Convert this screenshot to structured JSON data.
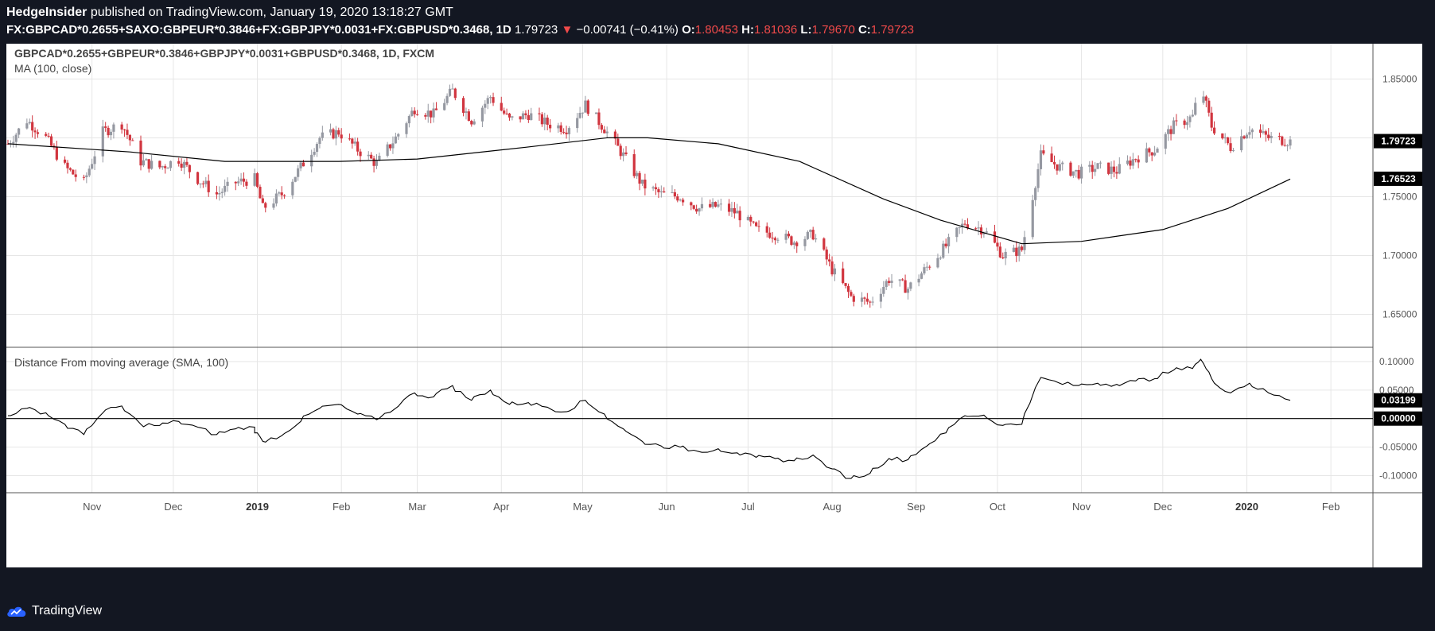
{
  "header": {
    "author": "HedgeInsider",
    "published": "published on TradingView.com, January 19, 2020 13:18:27 GMT",
    "symbol": "FX:GBPCAD*0.2655+SAXO:GBPEUR*0.3846+FX:GBPJPY*0.0031+FX:GBPUSD*0.3468, 1D",
    "last": "1.79723",
    "change_arrow": "▼",
    "change": "−0.00741 (−0.41%)",
    "o_label": "O:",
    "o": "1.80453",
    "h_label": "H:",
    "h": "1.81036",
    "l_label": "L:",
    "l": "1.79670",
    "c_label": "C:",
    "c": "1.79723"
  },
  "footer": {
    "brand": "TradingView"
  },
  "colors": {
    "bg": "#131722",
    "up": "#9598a1",
    "down": "#d1353f",
    "line": "#000000",
    "grid": "#e6e6e6"
  },
  "chart_data": [
    {
      "type": "candlestick",
      "title": "GBPCAD*0.2655+GBPEUR*0.3846+GBPJPY*0.0031+GBPUSD*0.3468, 1D, FXCM",
      "indicator_label": "MA (100, close)",
      "x_labels": [
        "Nov",
        "Dec",
        "2019",
        "Feb",
        "Mar",
        "Apr",
        "May",
        "Jun",
        "Jul",
        "Aug",
        "Sep",
        "Oct",
        "Nov",
        "Dec",
        "2020",
        "Feb"
      ],
      "y_ticks": [
        "1.85000",
        "1.80000",
        "1.75000",
        "1.70000",
        "1.65000"
      ],
      "ylim": [
        1.622,
        1.88
      ],
      "close_path": [
        [
          "2018-10-01",
          1.795
        ],
        [
          "2018-10-08",
          1.815
        ],
        [
          "2018-10-15",
          1.8
        ],
        [
          "2018-10-22",
          1.775
        ],
        [
          "2018-10-29",
          1.762
        ],
        [
          "2018-11-05",
          1.805
        ],
        [
          "2018-11-12",
          1.812
        ],
        [
          "2018-11-19",
          1.78
        ],
        [
          "2018-11-26",
          1.775
        ],
        [
          "2018-12-03",
          1.782
        ],
        [
          "2018-12-10",
          1.765
        ],
        [
          "2018-12-17",
          1.752
        ],
        [
          "2018-12-24",
          1.762
        ],
        [
          "2018-12-31",
          1.765
        ],
        [
          "2019-01-03",
          1.74
        ],
        [
          "2019-01-10",
          1.752
        ],
        [
          "2019-01-17",
          1.775
        ],
        [
          "2019-01-24",
          1.8
        ],
        [
          "2019-01-31",
          1.805
        ],
        [
          "2019-02-07",
          1.79
        ],
        [
          "2019-02-14",
          1.778
        ],
        [
          "2019-02-21",
          1.8
        ],
        [
          "2019-02-28",
          1.825
        ],
        [
          "2019-03-07",
          1.82
        ],
        [
          "2019-03-14",
          1.84
        ],
        [
          "2019-03-21",
          1.815
        ],
        [
          "2019-03-28",
          1.835
        ],
        [
          "2019-04-04",
          1.815
        ],
        [
          "2019-04-11",
          1.82
        ],
        [
          "2019-04-18",
          1.812
        ],
        [
          "2019-04-25",
          1.808
        ],
        [
          "2019-05-02",
          1.828
        ],
        [
          "2019-05-09",
          1.808
        ],
        [
          "2019-05-16",
          1.785
        ],
        [
          "2019-05-23",
          1.76
        ],
        [
          "2019-05-30",
          1.752
        ],
        [
          "2019-06-06",
          1.75
        ],
        [
          "2019-06-13",
          1.74
        ],
        [
          "2019-06-20",
          1.742
        ],
        [
          "2019-06-27",
          1.736
        ],
        [
          "2019-07-04",
          1.722
        ],
        [
          "2019-07-11",
          1.718
        ],
        [
          "2019-07-18",
          1.712
        ],
        [
          "2019-07-25",
          1.718
        ],
        [
          "2019-08-01",
          1.688
        ],
        [
          "2019-08-08",
          1.665
        ],
        [
          "2019-08-15",
          1.66
        ],
        [
          "2019-08-22",
          1.68
        ],
        [
          "2019-08-29",
          1.672
        ],
        [
          "2019-09-05",
          1.69
        ],
        [
          "2019-09-12",
          1.708
        ],
        [
          "2019-09-19",
          1.728
        ],
        [
          "2019-09-26",
          1.722
        ],
        [
          "2019-10-03",
          1.7
        ],
        [
          "2019-10-10",
          1.705
        ],
        [
          "2019-10-17",
          1.785
        ],
        [
          "2019-10-24",
          1.775
        ],
        [
          "2019-10-31",
          1.77
        ],
        [
          "2019-11-07",
          1.775
        ],
        [
          "2019-11-14",
          1.772
        ],
        [
          "2019-11-21",
          1.783
        ],
        [
          "2019-11-28",
          1.79
        ],
        [
          "2019-12-05",
          1.81
        ],
        [
          "2019-12-12",
          1.818
        ],
        [
          "2019-12-15",
          1.845
        ],
        [
          "2019-12-19",
          1.81
        ],
        [
          "2019-12-26",
          1.792
        ],
        [
          "2020-01-02",
          1.808
        ],
        [
          "2020-01-09",
          1.8
        ],
        [
          "2020-01-17",
          1.797
        ]
      ],
      "ma_path": [
        [
          "2018-10-01",
          1.795
        ],
        [
          "2018-11-15",
          1.788
        ],
        [
          "2018-12-20",
          1.78
        ],
        [
          "2019-01-31",
          1.78
        ],
        [
          "2019-03-01",
          1.782
        ],
        [
          "2019-04-10",
          1.792
        ],
        [
          "2019-05-10",
          1.8
        ],
        [
          "2019-05-25",
          1.8
        ],
        [
          "2019-06-20",
          1.795
        ],
        [
          "2019-07-20",
          1.78
        ],
        [
          "2019-08-20",
          1.748
        ],
        [
          "2019-09-10",
          1.73
        ],
        [
          "2019-10-01",
          1.716
        ],
        [
          "2019-10-10",
          1.71
        ],
        [
          "2019-11-01",
          1.712
        ],
        [
          "2019-12-01",
          1.722
        ],
        [
          "2019-12-25",
          1.74
        ],
        [
          "2020-01-17",
          1.765
        ]
      ],
      "price_labels": [
        "1.79723",
        "1.76523"
      ],
      "last_close": 1.79723,
      "ma_last": 1.76523
    },
    {
      "type": "line",
      "title": "Distance From moving average (SMA, 100)",
      "y_ticks": [
        "0.10000",
        "0.05000",
        "0.00000",
        "-0.05000",
        "-0.10000"
      ],
      "ylim": [
        -0.13,
        0.125
      ],
      "zero_label": "0.00000",
      "last_label": "0.03199",
      "last_value": 0.03199,
      "series": [
        [
          "2018-10-01",
          0.005
        ],
        [
          "2018-10-08",
          0.018
        ],
        [
          "2018-10-15",
          0.01
        ],
        [
          "2018-10-22",
          -0.01
        ],
        [
          "2018-10-29",
          -0.028
        ],
        [
          "2018-11-05",
          0.01
        ],
        [
          "2018-11-12",
          0.022
        ],
        [
          "2018-11-19",
          -0.01
        ],
        [
          "2018-11-26",
          -0.012
        ],
        [
          "2018-12-03",
          -0.005
        ],
        [
          "2018-12-10",
          -0.015
        ],
        [
          "2018-12-17",
          -0.028
        ],
        [
          "2018-12-24",
          -0.018
        ],
        [
          "2018-12-31",
          -0.015
        ],
        [
          "2019-01-03",
          -0.04
        ],
        [
          "2019-01-10",
          -0.03
        ],
        [
          "2019-01-17",
          -0.005
        ],
        [
          "2019-01-24",
          0.018
        ],
        [
          "2019-01-31",
          0.025
        ],
        [
          "2019-02-07",
          0.008
        ],
        [
          "2019-02-14",
          -0.002
        ],
        [
          "2019-02-21",
          0.018
        ],
        [
          "2019-02-28",
          0.045
        ],
        [
          "2019-03-07",
          0.038
        ],
        [
          "2019-03-14",
          0.058
        ],
        [
          "2019-03-21",
          0.032
        ],
        [
          "2019-03-28",
          0.05
        ],
        [
          "2019-04-04",
          0.025
        ],
        [
          "2019-04-11",
          0.028
        ],
        [
          "2019-04-18",
          0.02
        ],
        [
          "2019-04-25",
          0.012
        ],
        [
          "2019-05-02",
          0.032
        ],
        [
          "2019-05-09",
          0.008
        ],
        [
          "2019-05-16",
          -0.018
        ],
        [
          "2019-05-23",
          -0.04
        ],
        [
          "2019-05-30",
          -0.048
        ],
        [
          "2019-06-06",
          -0.05
        ],
        [
          "2019-06-13",
          -0.058
        ],
        [
          "2019-06-20",
          -0.053
        ],
        [
          "2019-06-27",
          -0.06
        ],
        [
          "2019-07-04",
          -0.068
        ],
        [
          "2019-07-11",
          -0.07
        ],
        [
          "2019-07-18",
          -0.074
        ],
        [
          "2019-07-25",
          -0.064
        ],
        [
          "2019-08-01",
          -0.088
        ],
        [
          "2019-08-08",
          -0.105
        ],
        [
          "2019-08-15",
          -0.096
        ],
        [
          "2019-08-22",
          -0.07
        ],
        [
          "2019-08-29",
          -0.072
        ],
        [
          "2019-09-05",
          -0.048
        ],
        [
          "2019-09-12",
          -0.025
        ],
        [
          "2019-09-19",
          0.005
        ],
        [
          "2019-09-26",
          0.006
        ],
        [
          "2019-10-03",
          -0.012
        ],
        [
          "2019-10-10",
          -0.01
        ],
        [
          "2019-10-17",
          0.072
        ],
        [
          "2019-10-24",
          0.062
        ],
        [
          "2019-10-31",
          0.058
        ],
        [
          "2019-11-07",
          0.062
        ],
        [
          "2019-11-14",
          0.06
        ],
        [
          "2019-11-21",
          0.066
        ],
        [
          "2019-11-28",
          0.07
        ],
        [
          "2019-12-05",
          0.085
        ],
        [
          "2019-12-12",
          0.088
        ],
        [
          "2019-12-15",
          0.104
        ],
        [
          "2019-12-19",
          0.07
        ],
        [
          "2019-12-26",
          0.045
        ],
        [
          "2020-01-02",
          0.062
        ],
        [
          "2020-01-09",
          0.045
        ],
        [
          "2020-01-17",
          0.032
        ]
      ]
    }
  ]
}
